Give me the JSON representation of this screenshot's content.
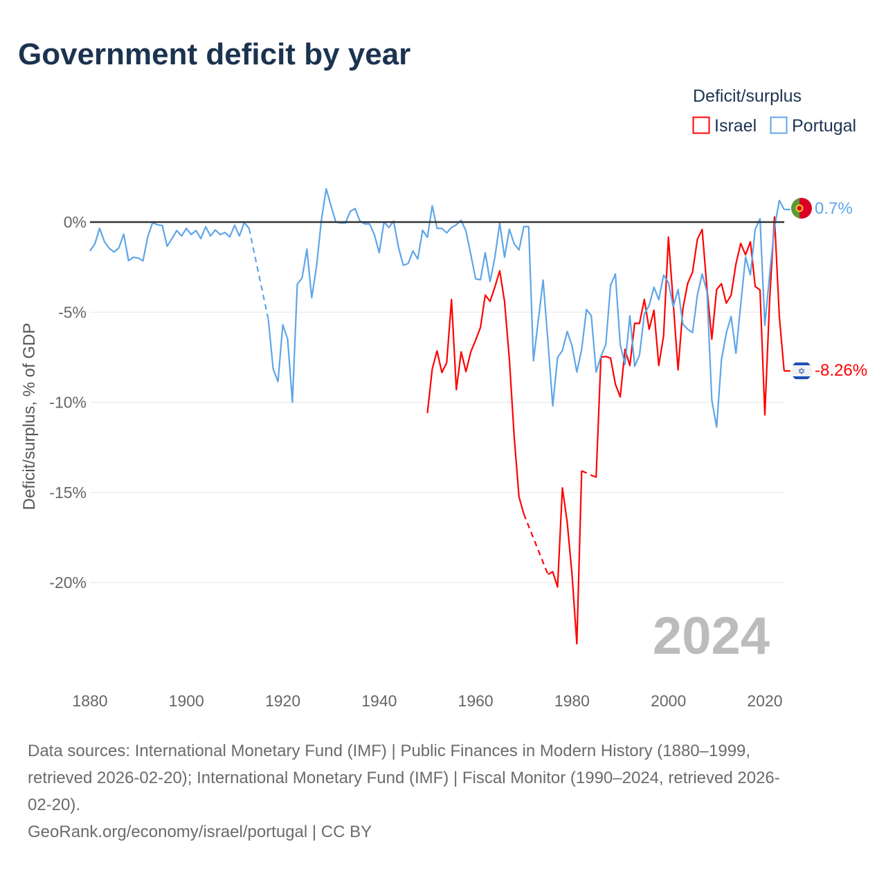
{
  "title": "Government deficit by year",
  "legend": {
    "title": "Deficit/surplus",
    "items": [
      "Israel",
      "Portugal"
    ]
  },
  "current_year": "2024",
  "end_labels": {
    "israel": "-8.26%",
    "portugal": "0.7%"
  },
  "footer": {
    "lines": [
      "Data sources: International Monetary Fund (IMF) | Public Finances in Modern History (1880–1999,",
      "retrieved 2026-02-20); International Monetary Fund (IMF) | Fiscal Monitor (1990–2024, retrieved 2026-",
      "02-20).",
      "GeoRank.org/economy/israel/portugal | CC BY"
    ]
  },
  "colors": {
    "israel": "#ff0000",
    "portugal": "#5ea5e8",
    "zero_line": "#333333",
    "grid": "#e6e6e6"
  },
  "icons": {
    "israel_flag": "israel-flag-icon",
    "portugal_flag": "portugal-flag-icon"
  },
  "chart_data": {
    "type": "line",
    "title": "Government deficit by year",
    "xlabel": "",
    "ylabel": "Deficit/surplus, % of GDP",
    "xlim": [
      1880,
      2024
    ],
    "ylim": [
      -24.5,
      2.5
    ],
    "x_ticks": [
      1880,
      1900,
      1920,
      1940,
      1960,
      1980,
      2000,
      2020
    ],
    "x_tick_labels": [
      "1880",
      "1900",
      "1920",
      "1940",
      "1960",
      "1980",
      "2000",
      "2020"
    ],
    "y_ticks": [
      0,
      -5,
      -10,
      -15,
      -20
    ],
    "y_tick_labels": [
      "0%",
      "-5%",
      "-10%",
      "-15%",
      "-20%"
    ],
    "grid": true,
    "legend_position": "top-right",
    "series": [
      {
        "name": "Israel",
        "key": "israel",
        "points": [
          [
            1950,
            -10.6
          ],
          [
            1951,
            -8.15
          ],
          [
            1952,
            -7.15
          ],
          [
            1953,
            -8.35
          ],
          [
            1954,
            -7.8
          ],
          [
            1955,
            -4.3
          ],
          [
            1956,
            -9.3
          ],
          [
            1957,
            -7.2
          ],
          [
            1958,
            -8.3
          ],
          [
            1959,
            -7.2
          ],
          [
            1960,
            -6.55
          ],
          [
            1961,
            -5.85
          ],
          [
            1962,
            -4.05
          ],
          [
            1963,
            -4.4
          ],
          [
            1964,
            -3.6
          ],
          [
            1965,
            -2.7
          ],
          [
            1966,
            -4.4
          ],
          [
            1967,
            -7.6
          ],
          [
            1968,
            -11.9
          ],
          [
            1969,
            -15.25
          ],
          [
            1970,
            -16.2
          ],
          [
            1971,
            null
          ],
          [
            1972,
            null
          ],
          [
            1973,
            null
          ],
          [
            1974,
            null
          ],
          [
            1975,
            -19.55
          ],
          [
            1976,
            -19.4
          ],
          [
            1977,
            -20.25
          ],
          [
            1978,
            -14.75
          ],
          [
            1979,
            -16.65
          ],
          [
            1980,
            -19.55
          ],
          [
            1981,
            -23.4
          ],
          [
            1982,
            -13.8
          ],
          [
            1983,
            null
          ],
          [
            1984,
            -14.05
          ],
          [
            1985,
            -14.15
          ],
          [
            1986,
            -7.49
          ],
          [
            1987,
            -7.46
          ],
          [
            1988,
            -7.55
          ],
          [
            1989,
            -9.0
          ],
          [
            1990,
            -9.7
          ],
          [
            1991,
            -7.06
          ],
          [
            1992,
            -7.96
          ],
          [
            1993,
            -5.62
          ],
          [
            1994,
            -5.62
          ],
          [
            1995,
            -4.29
          ],
          [
            1996,
            -5.95
          ],
          [
            1997,
            -4.89
          ],
          [
            1998,
            -7.96
          ],
          [
            1999,
            -6.3
          ],
          [
            2000,
            -0.83
          ],
          [
            2001,
            -4.5
          ],
          [
            2002,
            -8.2
          ],
          [
            2003,
            -4.8
          ],
          [
            2004,
            -3.4
          ],
          [
            2005,
            -2.78
          ],
          [
            2006,
            -0.96
          ],
          [
            2007,
            -0.41
          ],
          [
            2008,
            -3.7
          ],
          [
            2009,
            -6.5
          ],
          [
            2010,
            -3.74
          ],
          [
            2011,
            -3.42
          ],
          [
            2012,
            -4.5
          ],
          [
            2013,
            -4.06
          ],
          [
            2014,
            -2.33
          ],
          [
            2015,
            -1.18
          ],
          [
            2016,
            -1.82
          ],
          [
            2017,
            -1.09
          ],
          [
            2018,
            -3.57
          ],
          [
            2019,
            -3.77
          ],
          [
            2020,
            -10.7
          ],
          [
            2021,
            -4.3
          ],
          [
            2022,
            0.29
          ],
          [
            2023,
            -5.2
          ],
          [
            2024,
            -8.26
          ]
        ]
      },
      {
        "name": "Portugal",
        "key": "portugal",
        "points": [
          [
            1880,
            -1.6
          ],
          [
            1881,
            -1.22
          ],
          [
            1882,
            -0.35
          ],
          [
            1883,
            -1.09
          ],
          [
            1884,
            -1.46
          ],
          [
            1885,
            -1.66
          ],
          [
            1886,
            -1.43
          ],
          [
            1887,
            -0.67
          ],
          [
            1888,
            -2.14
          ],
          [
            1889,
            -1.95
          ],
          [
            1890,
            -2.0
          ],
          [
            1891,
            -2.15
          ],
          [
            1892,
            -0.79
          ],
          [
            1893,
            -0.03
          ],
          [
            1894,
            -0.15
          ],
          [
            1895,
            -0.19
          ],
          [
            1896,
            -1.34
          ],
          [
            1897,
            -0.92
          ],
          [
            1898,
            -0.47
          ],
          [
            1899,
            -0.77
          ],
          [
            1900,
            -0.35
          ],
          [
            1901,
            -0.69
          ],
          [
            1902,
            -0.47
          ],
          [
            1903,
            -0.92
          ],
          [
            1904,
            -0.26
          ],
          [
            1905,
            -0.77
          ],
          [
            1906,
            -0.44
          ],
          [
            1907,
            -0.69
          ],
          [
            1908,
            -0.58
          ],
          [
            1909,
            -0.82
          ],
          [
            1910,
            -0.18
          ],
          [
            1911,
            -0.77
          ],
          [
            1912,
            -0.03
          ],
          [
            1913,
            -0.35
          ],
          [
            1914,
            null
          ],
          [
            1915,
            null
          ],
          [
            1916,
            null
          ],
          [
            1917,
            -5.4
          ],
          [
            1918,
            -8.15
          ],
          [
            1919,
            -8.85
          ],
          [
            1920,
            -5.7
          ],
          [
            1921,
            -6.49
          ],
          [
            1922,
            -10.0
          ],
          [
            1923,
            -3.45
          ],
          [
            1924,
            -3.1
          ],
          [
            1925,
            -1.5
          ],
          [
            1926,
            -4.2
          ],
          [
            1927,
            -2.45
          ],
          [
            1928,
            0.1
          ],
          [
            1929,
            1.85
          ],
          [
            1930,
            0.9
          ],
          [
            1931,
            0.0
          ],
          [
            1932,
            -0.05
          ],
          [
            1933,
            -0.05
          ],
          [
            1934,
            0.6
          ],
          [
            1935,
            0.75
          ],
          [
            1936,
            0.05
          ],
          [
            1937,
            -0.1
          ],
          [
            1938,
            -0.1
          ],
          [
            1939,
            -0.7
          ],
          [
            1940,
            -1.7
          ],
          [
            1941,
            0.0
          ],
          [
            1942,
            -0.3
          ],
          [
            1943,
            0.05
          ],
          [
            1944,
            -1.4
          ],
          [
            1945,
            -2.4
          ],
          [
            1946,
            -2.3
          ],
          [
            1947,
            -1.6
          ],
          [
            1948,
            -2.05
          ],
          [
            1949,
            -0.45
          ],
          [
            1950,
            -0.85
          ],
          [
            1951,
            0.9
          ],
          [
            1952,
            -0.35
          ],
          [
            1953,
            -0.35
          ],
          [
            1954,
            -0.6
          ],
          [
            1955,
            -0.3
          ],
          [
            1956,
            -0.15
          ],
          [
            1957,
            0.1
          ],
          [
            1958,
            -0.5
          ],
          [
            1959,
            -1.8
          ],
          [
            1960,
            -3.15
          ],
          [
            1961,
            -3.2
          ],
          [
            1962,
            -1.7
          ],
          [
            1963,
            -3.3
          ],
          [
            1964,
            -1.95
          ],
          [
            1965,
            -0.05
          ],
          [
            1966,
            -1.95
          ],
          [
            1967,
            -0.4
          ],
          [
            1968,
            -1.2
          ],
          [
            1969,
            -1.55
          ],
          [
            1970,
            -0.25
          ],
          [
            1971,
            -0.25
          ],
          [
            1972,
            -7.7
          ],
          [
            1973,
            -5.46
          ],
          [
            1974,
            -3.22
          ],
          [
            1975,
            -6.6
          ],
          [
            1976,
            -10.2
          ],
          [
            1977,
            -7.51
          ],
          [
            1978,
            -7.13
          ],
          [
            1979,
            -6.07
          ],
          [
            1980,
            -6.87
          ],
          [
            1981,
            -8.32
          ],
          [
            1982,
            -7.06
          ],
          [
            1983,
            -4.85
          ],
          [
            1984,
            -5.2
          ],
          [
            1985,
            -8.32
          ],
          [
            1986,
            -7.45
          ],
          [
            1987,
            -6.8
          ],
          [
            1988,
            -3.5
          ],
          [
            1989,
            -2.88
          ],
          [
            1990,
            -6.8
          ],
          [
            1991,
            -7.9
          ],
          [
            1992,
            -5.2
          ],
          [
            1993,
            -8.0
          ],
          [
            1994,
            -7.38
          ],
          [
            1995,
            -5.1
          ],
          [
            1996,
            -4.63
          ],
          [
            1997,
            -3.61
          ],
          [
            1998,
            -4.31
          ],
          [
            1999,
            -2.94
          ],
          [
            2000,
            -3.35
          ],
          [
            2001,
            -4.7
          ],
          [
            2002,
            -3.74
          ],
          [
            2003,
            -5.66
          ],
          [
            2004,
            -5.95
          ],
          [
            2005,
            -6.13
          ],
          [
            2006,
            -4.06
          ],
          [
            2007,
            -2.88
          ],
          [
            2008,
            -3.86
          ],
          [
            2009,
            -9.88
          ],
          [
            2010,
            -11.38
          ],
          [
            2011,
            -7.64
          ],
          [
            2012,
            -6.17
          ],
          [
            2013,
            -5.23
          ],
          [
            2014,
            -7.28
          ],
          [
            2015,
            -4.57
          ],
          [
            2016,
            -1.94
          ],
          [
            2017,
            -2.93
          ],
          [
            2018,
            -0.41
          ],
          [
            2019,
            0.19
          ],
          [
            2020,
            -5.72
          ],
          [
            2021,
            -2.9
          ],
          [
            2022,
            -0.3
          ],
          [
            2023,
            1.2
          ],
          [
            2024,
            0.7
          ]
        ]
      }
    ]
  }
}
